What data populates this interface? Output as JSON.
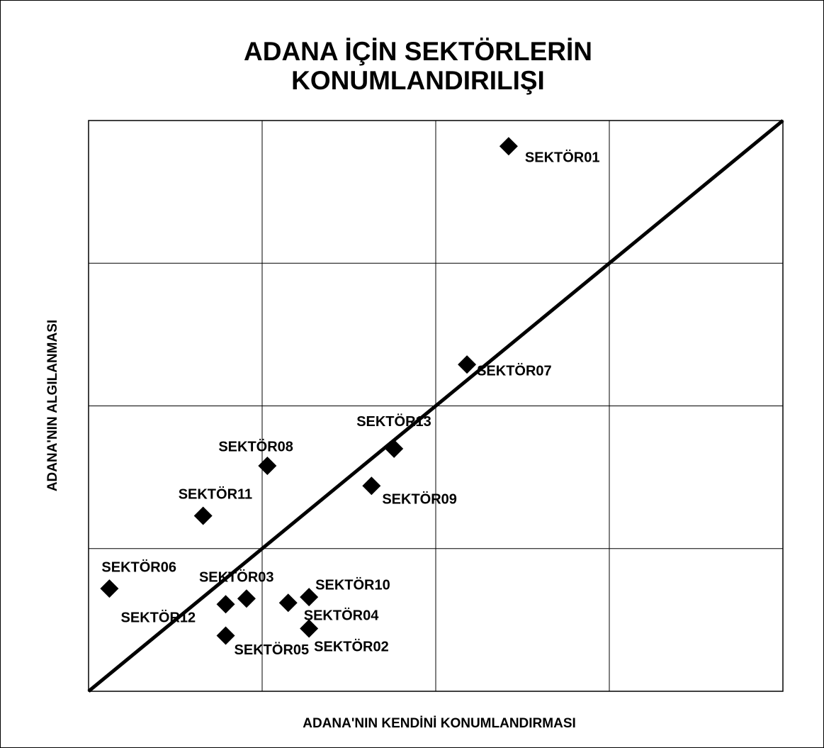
{
  "chart_data": {
    "type": "scatter",
    "title": "ADANA İÇİN SEKTÖRLERİN",
    "subtitle": "KONUMLANDIRILIŞI",
    "x_label": "ADANA'NIN KENDİNİ KONUMLANDIRMASI",
    "y_label": "ADANA'NIN ALGILANMASI",
    "xlim": [
      0,
      4
    ],
    "ylim": [
      0,
      4
    ],
    "xticks": [
      0,
      1,
      2,
      3,
      4
    ],
    "yticks": [
      0,
      1,
      2,
      3,
      4
    ],
    "grid": true,
    "color": "#000000",
    "series": [
      {
        "name": null,
        "labels": [
          "SEKTÖR01",
          "SEKTÖR07",
          "SEKTÖR13",
          "SEKTÖR08",
          "SEKTÖR09",
          "SEKTÖR11",
          "SEKTÖR06",
          "SEKTÖR03",
          "SEKTÖR12",
          "SEKTÖR10",
          "SEKTÖR04",
          "SEKTÖR02",
          "SEKTÖR05"
        ],
        "x": [
          2.42,
          2.18,
          1.76,
          1.03,
          1.63,
          0.66,
          0.12,
          0.91,
          0.79,
          1.27,
          1.15,
          1.27,
          0.79
        ],
        "values": [
          3.82,
          2.29,
          1.7,
          1.58,
          1.44,
          1.23,
          0.72,
          0.65,
          0.61,
          0.66,
          0.62,
          0.44,
          0.39
        ]
      }
    ]
  }
}
